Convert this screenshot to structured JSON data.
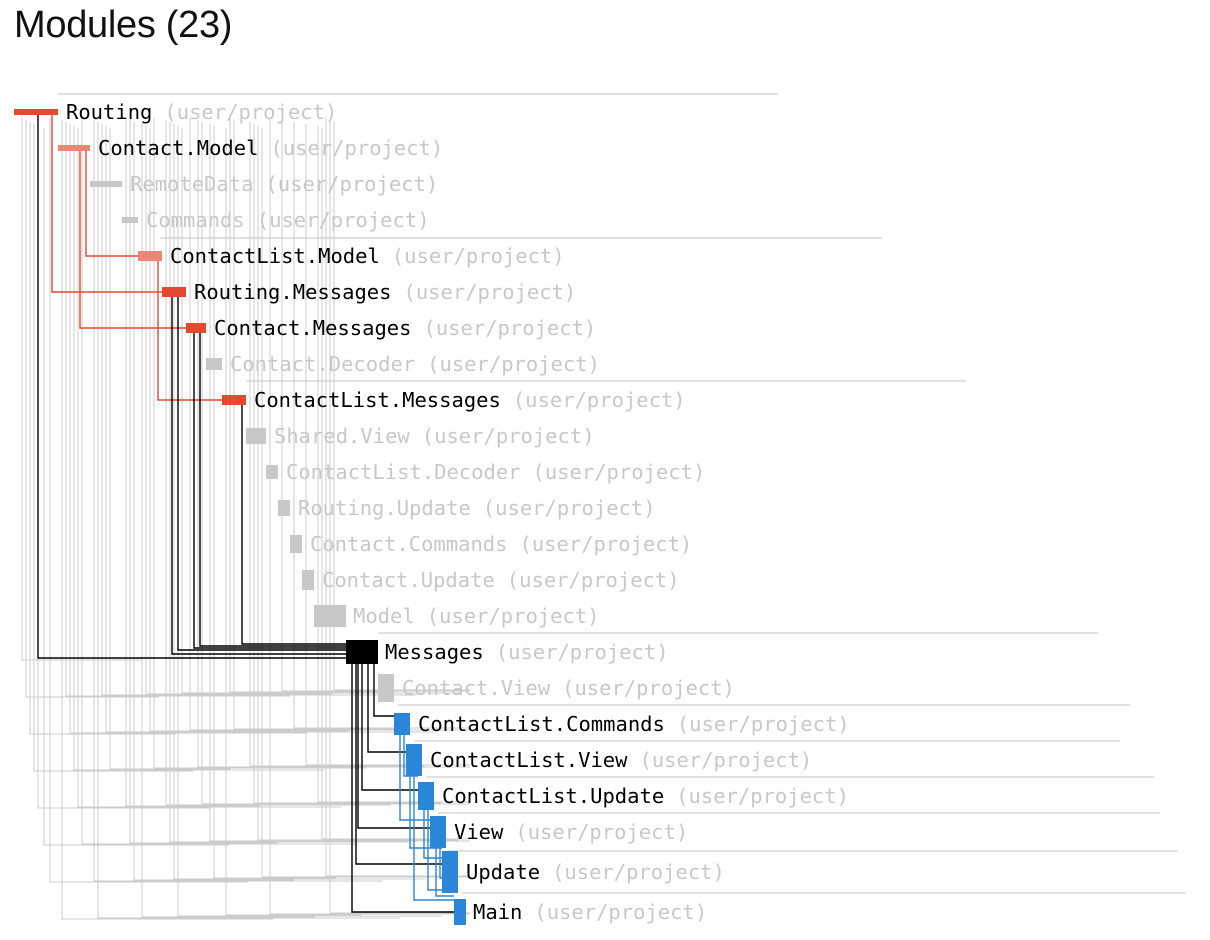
{
  "title": "Modules (23)",
  "colors": {
    "red": "#e2492f",
    "salmon": "#ec8677",
    "gray": "#c8c8c8",
    "black": "#000000",
    "blue": "#2a86d6",
    "faint_text": "#c8c8c8",
    "edge_gray": "#c8c8c8"
  },
  "modules": [
    {
      "name": "Routing",
      "package": "(user/project)",
      "state": "red"
    },
    {
      "name": "Contact.Model",
      "package": "(user/project)",
      "state": "salmon"
    },
    {
      "name": "RemoteData",
      "package": "(user/project)",
      "state": "gray"
    },
    {
      "name": "Commands",
      "package": "(user/project)",
      "state": "gray"
    },
    {
      "name": "ContactList.Model",
      "package": "(user/project)",
      "state": "salmon"
    },
    {
      "name": "Routing.Messages",
      "package": "(user/project)",
      "state": "red"
    },
    {
      "name": "Contact.Messages",
      "package": "(user/project)",
      "state": "red"
    },
    {
      "name": "Contact.Decoder",
      "package": "(user/project)",
      "state": "gray"
    },
    {
      "name": "ContactList.Messages",
      "package": "(user/project)",
      "state": "red"
    },
    {
      "name": "Shared.View",
      "package": "(user/project)",
      "state": "gray"
    },
    {
      "name": "ContactList.Decoder",
      "package": "(user/project)",
      "state": "gray"
    },
    {
      "name": "Routing.Update",
      "package": "(user/project)",
      "state": "gray"
    },
    {
      "name": "Contact.Commands",
      "package": "(user/project)",
      "state": "gray"
    },
    {
      "name": "Contact.Update",
      "package": "(user/project)",
      "state": "gray"
    },
    {
      "name": "Model",
      "package": "(user/project)",
      "state": "gray"
    },
    {
      "name": "Messages",
      "package": "(user/project)",
      "state": "black"
    },
    {
      "name": "Contact.View",
      "package": "(user/project)",
      "state": "gray"
    },
    {
      "name": "ContactList.Commands",
      "package": "(user/project)",
      "state": "blue"
    },
    {
      "name": "ContactList.View",
      "package": "(user/project)",
      "state": "blue"
    },
    {
      "name": "ContactList.Update",
      "package": "(user/project)",
      "state": "blue"
    },
    {
      "name": "View",
      "package": "(user/project)",
      "state": "blue"
    },
    {
      "name": "Update",
      "package": "(user/project)",
      "state": "blue"
    },
    {
      "name": "Main",
      "package": "(user/project)",
      "state": "blue"
    }
  ]
}
